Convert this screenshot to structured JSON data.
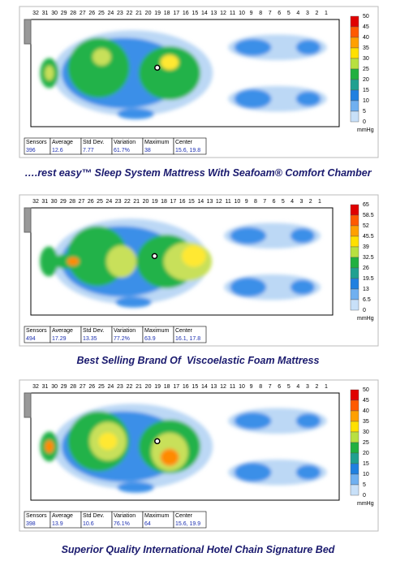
{
  "panels": [
    {
      "columns": [
        "32",
        "31",
        "30",
        "29",
        "28",
        "27",
        "26",
        "25",
        "24",
        "23",
        "22",
        "21",
        "20",
        "19",
        "18",
        "17",
        "16",
        "15",
        "14",
        "13",
        "12",
        "11",
        "10",
        "9",
        "8",
        "7",
        "6",
        "5",
        "4",
        "3",
        "2",
        "1"
      ],
      "scale": [
        "50",
        "45",
        "40",
        "35",
        "30",
        "25",
        "20",
        "15",
        "10",
        "5",
        "0"
      ],
      "unit": "mmHg",
      "stats": {
        "headers": [
          "Sensors",
          "Average",
          "Std Dev.",
          "Variation",
          "Maximum",
          "Center"
        ],
        "values": [
          "396",
          "12.6",
          "7.77",
          "61.7%",
          "38",
          "15.6, 19.8"
        ]
      },
      "caption": "….rest easy™ Sleep System Mattress With Seafoam® Comfort Chamber"
    },
    {
      "columns": [
        "32",
        "31",
        "30",
        "29",
        "28",
        "27",
        "26",
        "25",
        "24",
        "23",
        "22",
        "21",
        "20",
        "19",
        "18",
        "17",
        "16",
        "15",
        "14",
        "13",
        "12",
        "11",
        "10",
        "9",
        "8",
        "7",
        "6",
        "5",
        "4",
        "3",
        "2",
        "1"
      ],
      "scale": [
        "65",
        "58.5",
        "52",
        "45.5",
        "39",
        "32.5",
        "26",
        "19.5",
        "13",
        "6.5",
        "0"
      ],
      "unit": "mmHg",
      "stats": {
        "headers": [
          "Sensors",
          "Average",
          "Std Dev.",
          "Variation",
          "Maximum",
          "Center"
        ],
        "values": [
          "494",
          "17.29",
          "13.35",
          "77.2%",
          "63.9",
          "16.1, 17.8"
        ]
      },
      "caption": "Best Selling Brand Of  Viscoelastic Foam Mattress"
    },
    {
      "columns": [
        "32",
        "31",
        "30",
        "29",
        "28",
        "27",
        "26",
        "25",
        "24",
        "23",
        "22",
        "21",
        "20",
        "19",
        "18",
        "17",
        "16",
        "15",
        "14",
        "13",
        "12",
        "11",
        "10",
        "9",
        "8",
        "7",
        "6",
        "5",
        "4",
        "3",
        "2",
        "1"
      ],
      "scale": [
        "50",
        "45",
        "40",
        "35",
        "30",
        "25",
        "20",
        "15",
        "10",
        "5",
        "0"
      ],
      "unit": "mmHg",
      "stats": {
        "headers": [
          "Sensors",
          "Average",
          "Std Dev.",
          "Variation",
          "Maximum",
          "Center"
        ],
        "values": [
          "398",
          "13.9",
          "10.6",
          "76.1%",
          "64",
          "15.6, 19.9"
        ]
      },
      "caption": "Superior Quality International Hotel Chain Signature Bed"
    }
  ]
}
